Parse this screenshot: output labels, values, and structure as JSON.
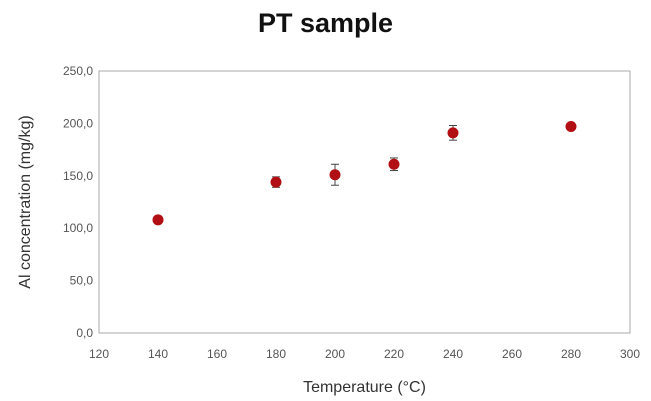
{
  "chart_data": {
    "type": "scatter",
    "title": "PT sample",
    "xlabel": "Temperature (°C)",
    "ylabel": "Al concentration (mg/kg)",
    "xlim": [
      120,
      300
    ],
    "ylim": [
      0,
      250
    ],
    "x_ticks": [
      120,
      140,
      160,
      180,
      200,
      220,
      240,
      260,
      280,
      300
    ],
    "x_tick_labels": [
      "120",
      "140",
      "160",
      "180",
      "200",
      "220",
      "240",
      "260",
      "280",
      "300"
    ],
    "y_ticks": [
      0,
      50,
      100,
      150,
      200,
      250
    ],
    "y_tick_labels": [
      "0,0",
      "50,0",
      "100,0",
      "150,0",
      "200,0",
      "250,0"
    ],
    "grid": false,
    "series": [
      {
        "x": [
          140,
          180,
          200,
          220,
          240,
          280
        ],
        "y": [
          108,
          144,
          151,
          161,
          191,
          197
        ],
        "error": [
          2,
          5,
          10,
          6,
          7,
          2
        ],
        "color": "#b10f14"
      }
    ]
  }
}
